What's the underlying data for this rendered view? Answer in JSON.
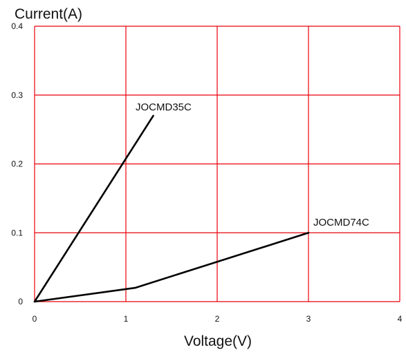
{
  "chart_data": {
    "type": "line",
    "ylabel": "Current(A)",
    "xlabel": "Voltage(V)",
    "xlim": [
      0,
      4
    ],
    "ylim": [
      0,
      0.4
    ],
    "x_ticks": [
      "0",
      "1",
      "2",
      "3",
      "4"
    ],
    "y_ticks": [
      "0",
      "0.1",
      "0.2",
      "0.3",
      "0.4"
    ],
    "grid": true,
    "colors": {
      "grid": "#e8000b",
      "series": "#000000"
    },
    "series": [
      {
        "name": "JOCMD35C",
        "points": [
          [
            0,
            0
          ],
          [
            1.3,
            0.27
          ]
        ]
      },
      {
        "name": "JOCMD74C",
        "points": [
          [
            0,
            0
          ],
          [
            1.1,
            0.02
          ],
          [
            3.0,
            0.1
          ]
        ]
      }
    ]
  }
}
